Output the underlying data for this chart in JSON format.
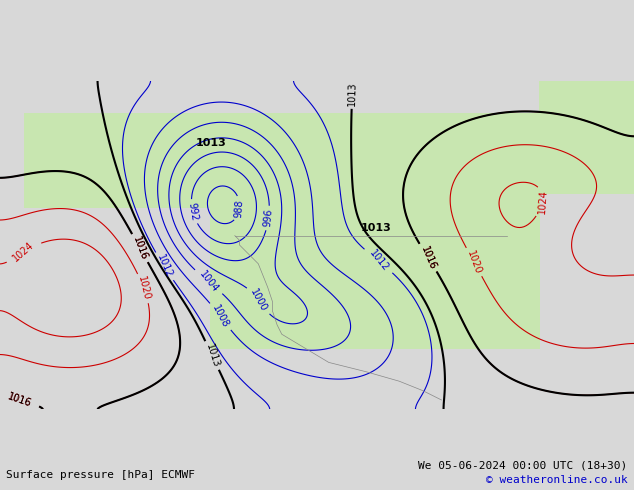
{
  "title_left": "Surface pressure [hPa] ECMWF",
  "title_right": "We 05-06-2024 00:00 UTC (18+30)",
  "copyright": "© weatheronline.co.uk",
  "bg_color": "#d8d8d8",
  "land_color": "#c8e6b0",
  "ocean_color": "#d8d8d8",
  "contour_blue_color": "#0000cc",
  "contour_red_color": "#cc0000",
  "contour_black_color": "#000000",
  "label_fontsize": 7,
  "footer_fontsize": 8,
  "figsize": [
    6.34,
    4.9
  ],
  "dpi": 100
}
